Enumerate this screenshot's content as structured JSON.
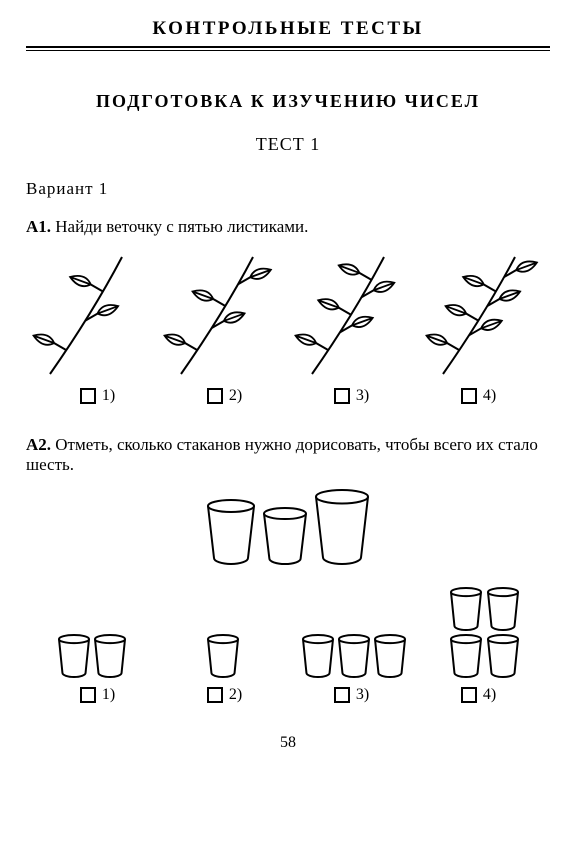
{
  "header": "КОНТРОЛЬНЫЕ  ТЕСТЫ",
  "section": "ПОДГОТОВКА  К  ИЗУЧЕНИЮ  ЧИСЕЛ",
  "test_title": "ТЕСТ 1",
  "variant": "Вариант 1",
  "page_number": "58",
  "q1": {
    "label": "А1.",
    "text": "Найди веточку с пятью листиками.",
    "options": [
      "1)",
      "2)",
      "3)",
      "4)"
    ],
    "leaf_counts": [
      3,
      4,
      5,
      6
    ],
    "stroke": "#000000",
    "stroke_width": 2
  },
  "q2": {
    "label": "А2.",
    "text": "Отметь, сколько стаканов нужно дорисовать, чтобы всего их стало шесть.",
    "main_glasses": 3,
    "option_counts": [
      2,
      1,
      3,
      4
    ],
    "options": [
      "1)",
      "2)",
      "3)",
      "4)"
    ],
    "glass_stroke": "#000000",
    "glass_stroke_width": 2,
    "glass_fill": "#ffffff"
  }
}
